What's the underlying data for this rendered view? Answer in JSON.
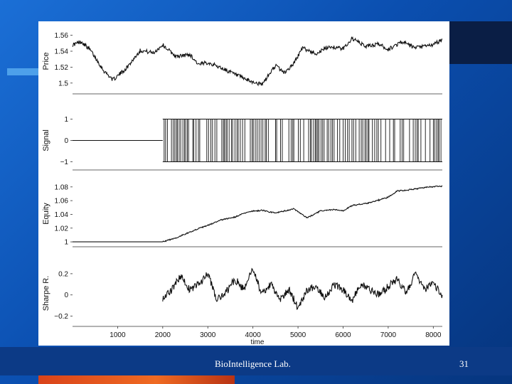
{
  "footer": {
    "lab": "BioIntelligence Lab.",
    "page": "31"
  },
  "colors": {
    "background": "#0b4fb0",
    "accent_orange": "#e8581f",
    "line": "#111111"
  },
  "chart_data": [
    {
      "type": "line",
      "ylabel": "Price",
      "ylim": [
        1.49,
        1.565
      ],
      "yticks": [
        "1.5",
        "1.52",
        "1.54",
        "1.56"
      ],
      "ytick_values": [
        1.5,
        1.52,
        1.54,
        1.56
      ],
      "xlim": [
        0,
        8200
      ],
      "xlabel": "",
      "series": [
        {
          "x": [
            0,
            200,
            400,
            700,
            900,
            1200,
            1500,
            1800,
            2000,
            2300,
            2600,
            2800,
            3000,
            3300,
            3600,
            3900,
            4200,
            4500,
            4700,
            4900,
            5100,
            5400,
            5700,
            6000,
            6200,
            6500,
            6800,
            7000,
            7300,
            7600,
            8000,
            8200
          ],
          "values": [
            1.548,
            1.552,
            1.541,
            1.515,
            1.504,
            1.519,
            1.541,
            1.538,
            1.548,
            1.533,
            1.536,
            1.523,
            1.526,
            1.519,
            1.511,
            1.503,
            1.498,
            1.522,
            1.513,
            1.524,
            1.544,
            1.537,
            1.546,
            1.543,
            1.556,
            1.546,
            1.549,
            1.542,
            1.552,
            1.544,
            1.548,
            1.555
          ]
        }
      ]
    },
    {
      "type": "line",
      "ylabel": "Signal",
      "ylim": [
        -1.25,
        1.25
      ],
      "yticks": [
        "−1",
        "0",
        "1"
      ],
      "ytick_values": [
        -1,
        0,
        1
      ],
      "xlim": [
        0,
        8200
      ],
      "xlabel": "",
      "signal_start": 2000,
      "series": [
        {
          "x": [
            0,
            2000
          ],
          "values": [
            0,
            0
          ]
        }
      ]
    },
    {
      "type": "line",
      "ylabel": "Equity",
      "ylim": [
        0.997,
        1.085
      ],
      "yticks": [
        "1",
        "1.02",
        "1.04",
        "1.06",
        "1.08"
      ],
      "ytick_values": [
        1,
        1.02,
        1.04,
        1.06,
        1.08
      ],
      "xlim": [
        0,
        8200
      ],
      "xlabel": "",
      "series": [
        {
          "x": [
            0,
            2000,
            2300,
            2700,
            3000,
            3300,
            3600,
            3900,
            4200,
            4500,
            4900,
            5200,
            5500,
            5800,
            6000,
            6200,
            6600,
            7000,
            7200,
            7500,
            7900,
            8200
          ],
          "values": [
            1.0,
            1.0,
            1.006,
            1.017,
            1.024,
            1.032,
            1.036,
            1.044,
            1.046,
            1.042,
            1.048,
            1.035,
            1.045,
            1.047,
            1.045,
            1.053,
            1.057,
            1.065,
            1.074,
            1.076,
            1.08,
            1.081
          ]
        }
      ]
    },
    {
      "type": "line",
      "ylabel": "Sharpe R.",
      "ylim": [
        -0.27,
        0.3
      ],
      "yticks": [
        "−0.2",
        "0",
        "0.2"
      ],
      "ytick_values": [
        -0.2,
        0,
        0.2
      ],
      "xlim": [
        0,
        8200
      ],
      "xlabel": "time",
      "xticks": [
        "1000",
        "2000",
        "3000",
        "4000",
        "5000",
        "6000",
        "7000",
        "8000"
      ],
      "xtick_values": [
        1000,
        2000,
        3000,
        4000,
        5000,
        6000,
        7000,
        8000
      ],
      "series": [
        {
          "x": [
            2000,
            2200,
            2400,
            2600,
            2800,
            3000,
            3200,
            3400,
            3600,
            3800,
            4000,
            4200,
            4400,
            4600,
            4800,
            5000,
            5200,
            5400,
            5600,
            5800,
            6000,
            6200,
            6400,
            6600,
            6800,
            7000,
            7200,
            7400,
            7600,
            7800,
            8000,
            8200
          ],
          "values": [
            -0.05,
            0.05,
            0.18,
            0.05,
            0.1,
            0.2,
            -0.05,
            0.02,
            0.15,
            0.05,
            0.25,
            0.0,
            0.1,
            -0.05,
            0.05,
            -0.12,
            0.05,
            0.08,
            -0.02,
            0.1,
            0.05,
            -0.05,
            0.1,
            0.05,
            0.0,
            0.08,
            0.15,
            0.02,
            0.2,
            0.05,
            0.1,
            0.0
          ]
        }
      ]
    }
  ]
}
